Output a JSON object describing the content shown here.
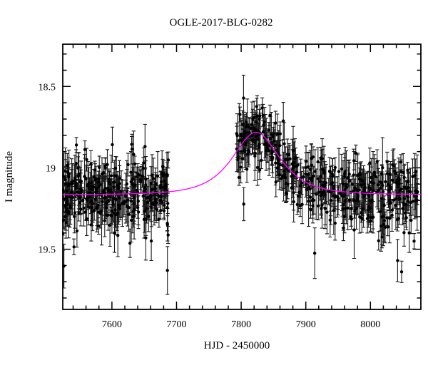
{
  "figure": {
    "background_color": "#ffffff",
    "frame_color": "#000000"
  },
  "chart_data": {
    "type": "scatter",
    "title": "OGLE-2017-BLG-0282",
    "xlabel": "HJD - 2450000",
    "ylabel": "I magnitude",
    "xlim": [
      7524,
      8078
    ],
    "ylim": [
      18.24,
      19.87
    ],
    "y_inverted": true,
    "grid": false,
    "legend": "none",
    "x_major_ticks": [
      7600,
      7700,
      7800,
      7900,
      8000
    ],
    "x_minor_step": 20,
    "y_major_ticks": [
      18.5,
      19,
      19.5
    ],
    "y_minor_step": 0.1,
    "model_curve": {
      "name": "paczynski-microlensing-fit",
      "t0": 7823,
      "tE": 47,
      "u0": 0.9,
      "baseline_mag": 19.165,
      "peak_mag": 18.78,
      "color": "#ff00ff",
      "line_width": 1.3
    },
    "point_style": {
      "point_color": "#000000",
      "point_radius": 2.2,
      "errorbar_color": "#1a1a1a",
      "errorbar_width": 1.1,
      "cap_halfwidth": 2.6
    },
    "sampled_points": [
      [
        7530,
        19.25,
        0.08
      ],
      [
        7535,
        19.1,
        0.07
      ],
      [
        7542,
        19.3,
        0.1
      ],
      [
        7548,
        19.05,
        0.06
      ],
      [
        7555,
        19.2,
        0.08
      ],
      [
        7561,
        18.95,
        0.07
      ],
      [
        7568,
        19.35,
        0.1
      ],
      [
        7575,
        19.15,
        0.07
      ],
      [
        7582,
        19.28,
        0.09
      ],
      [
        7590,
        19.0,
        0.06
      ],
      [
        7597,
        19.18,
        0.08
      ],
      [
        7604,
        19.4,
        0.12
      ],
      [
        7611,
        19.12,
        0.07
      ],
      [
        7618,
        19.22,
        0.08
      ],
      [
        7625,
        18.98,
        0.07
      ],
      [
        7632,
        19.3,
        0.1
      ],
      [
        7640,
        19.15,
        0.08
      ],
      [
        7647,
        19.05,
        0.07
      ],
      [
        7654,
        19.25,
        0.09
      ],
      [
        7661,
        19.45,
        0.12
      ],
      [
        7668,
        19.1,
        0.07
      ],
      [
        7675,
        19.2,
        0.08
      ],
      [
        7681,
        19.23,
        0.09
      ],
      [
        7686,
        19.35,
        0.1
      ],
      [
        7795,
        18.95,
        0.07
      ],
      [
        7800,
        18.9,
        0.07
      ],
      [
        7806,
        18.8,
        0.06
      ],
      [
        7812,
        18.75,
        0.06
      ],
      [
        7818,
        18.7,
        0.06
      ],
      [
        7823,
        18.72,
        0.06
      ],
      [
        7828,
        18.7,
        0.06
      ],
      [
        7834,
        18.78,
        0.07
      ],
      [
        7840,
        18.85,
        0.07
      ],
      [
        7848,
        18.95,
        0.08
      ],
      [
        7856,
        19.0,
        0.08
      ],
      [
        7864,
        19.05,
        0.08
      ],
      [
        7872,
        19.1,
        0.09
      ],
      [
        7880,
        19.05,
        0.08
      ],
      [
        7890,
        19.15,
        0.09
      ],
      [
        7900,
        19.1,
        0.08
      ],
      [
        7910,
        19.2,
        0.09
      ],
      [
        7920,
        19.15,
        0.08
      ],
      [
        7930,
        19.25,
        0.1
      ],
      [
        7940,
        19.1,
        0.08
      ],
      [
        7950,
        19.2,
        0.09
      ],
      [
        7960,
        19.3,
        0.1
      ],
      [
        7970,
        19.15,
        0.08
      ],
      [
        7980,
        19.2,
        0.09
      ],
      [
        7990,
        19.1,
        0.08
      ],
      [
        8000,
        19.25,
        0.1
      ],
      [
        8010,
        19.15,
        0.09
      ],
      [
        8020,
        19.3,
        0.11
      ],
      [
        8030,
        19.2,
        0.1
      ],
      [
        8042,
        19.57,
        0.13
      ],
      [
        8050,
        19.25,
        0.1
      ],
      [
        8060,
        19.4,
        0.12
      ],
      [
        8070,
        19.2,
        0.1
      ]
    ],
    "data_distribution": {
      "random_seed": 20170282,
      "seasons": [
        {
          "x_start": 7524,
          "x_end": 7688,
          "n_points": 300,
          "sigma_mag": 0.095,
          "err_min": 0.045,
          "err_max": 0.15,
          "faint_outlier_prob": 0.02,
          "faint_outlier_max": 0.33
        },
        {
          "x_start": 7793,
          "x_end": 8073,
          "n_points": 430,
          "sigma_mag": 0.09,
          "err_min": 0.045,
          "err_max": 0.16,
          "faint_outlier_prob": 0.02,
          "faint_outlier_max": 0.38
        }
      ]
    }
  }
}
